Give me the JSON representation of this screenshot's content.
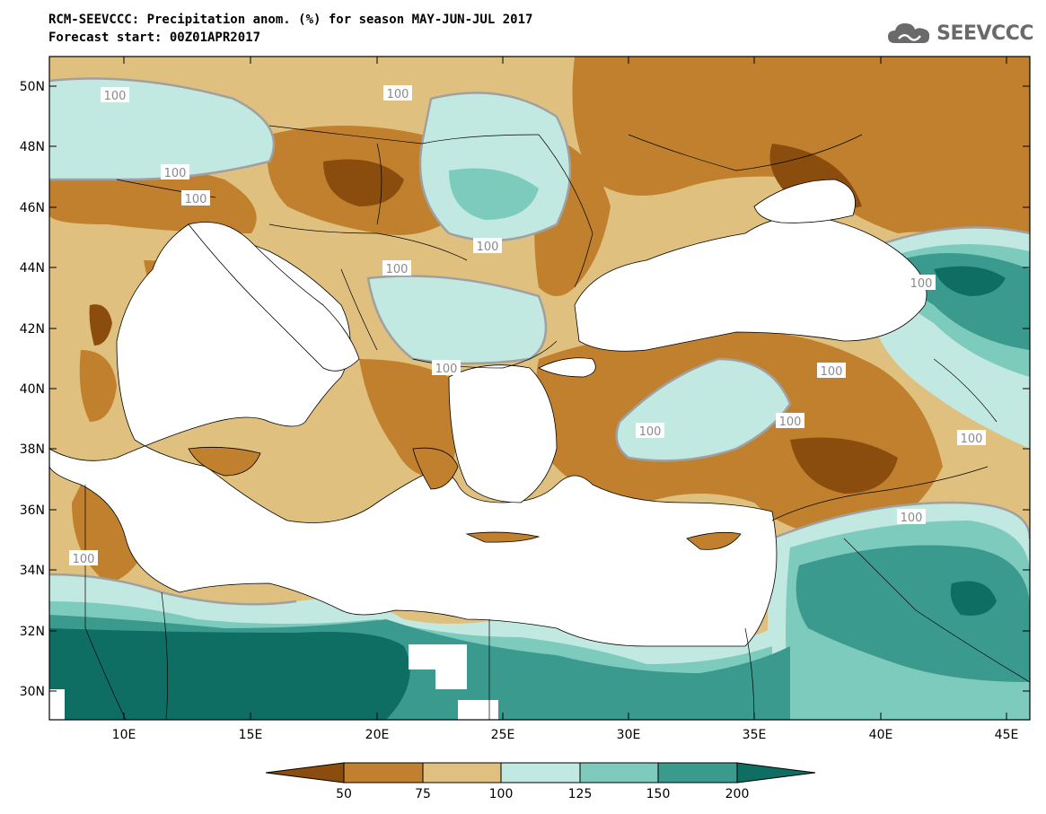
{
  "header": {
    "title_line1": "RCM-SEEVCCC: Precipitation anom. (%) for season MAY-JUN-JUL 2017",
    "title_line2": "Forecast start: 00Z01APR2017"
  },
  "logo": {
    "text": "SEEVCCC",
    "icon": "cloud-icon"
  },
  "map": {
    "lon_ticks": [
      "10E",
      "15E",
      "20E",
      "25E",
      "30E",
      "35E",
      "40E",
      "45E"
    ],
    "lat_ticks": [
      "50N",
      "48N",
      "46N",
      "44N",
      "42N",
      "40N",
      "38N",
      "36N",
      "34N",
      "32N",
      "30N"
    ],
    "contour_labels": [
      "100",
      "100",
      "100",
      "100",
      "100",
      "100",
      "100",
      "100",
      "100",
      "100",
      "100",
      "100",
      "100",
      "100"
    ]
  },
  "colorbar": {
    "labels": [
      "50",
      "75",
      "100",
      "125",
      "150",
      "200"
    ],
    "colors": [
      "#8b4d0d",
      "#c0802e",
      "#e0c07e",
      "#c2e8e2",
      "#7ccbbd",
      "#3a9a8e",
      "#0f6e64"
    ]
  }
}
